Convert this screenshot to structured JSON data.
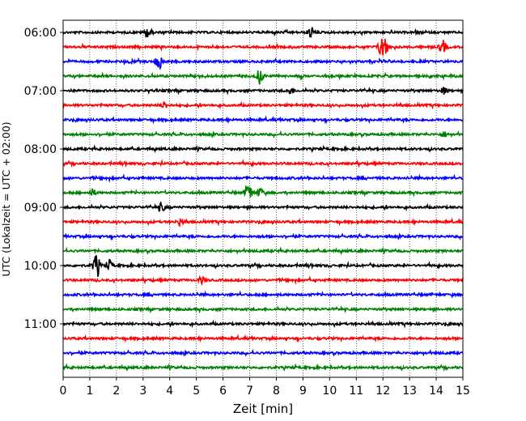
{
  "chart_data": {
    "type": "line",
    "title": "",
    "xlabel": "Zeit  [min]",
    "ylabel": "UTC (Lokalzeit = UTC + 02:00)",
    "xlim": [
      0,
      15
    ],
    "x_ticks": [
      "0",
      "1",
      "2",
      "3",
      "4",
      "5",
      "6",
      "7",
      "8",
      "9",
      "10",
      "11",
      "12",
      "13",
      "14",
      "15"
    ],
    "y_tick_labels": [
      "06:00",
      "07:00",
      "08:00",
      "09:00",
      "10:00",
      "11:00"
    ],
    "grid": "vertical-dotted",
    "row_interval_min": 15,
    "color_cycle": [
      "#000000",
      "#ff0000",
      "#0000ff",
      "#008000"
    ],
    "rows": [
      {
        "start": "06:00",
        "events": [
          {
            "t": 3.2,
            "amp": 6
          },
          {
            "t": 9.3,
            "amp": 6
          }
        ]
      },
      {
        "start": "06:15",
        "events": [
          {
            "t": 11.95,
            "amp": 12
          },
          {
            "t": 12.1,
            "amp": 8
          },
          {
            "t": 14.25,
            "amp": 8
          }
        ]
      },
      {
        "start": "06:30",
        "events": [
          {
            "t": 3.6,
            "amp": 9
          }
        ]
      },
      {
        "start": "06:45",
        "events": [
          {
            "t": 7.4,
            "amp": 8
          }
        ]
      },
      {
        "start": "07:00",
        "events": [
          {
            "t": 8.55,
            "amp": 4
          },
          {
            "t": 14.3,
            "amp": 4
          }
        ]
      },
      {
        "start": "07:15",
        "events": [
          {
            "t": 3.8,
            "amp": 4
          }
        ]
      },
      {
        "start": "07:30",
        "events": []
      },
      {
        "start": "07:45",
        "events": [
          {
            "t": 14.3,
            "amp": 3
          }
        ]
      },
      {
        "start": "08:00",
        "events": []
      },
      {
        "start": "08:15",
        "events": []
      },
      {
        "start": "08:30",
        "events": []
      },
      {
        "start": "08:45",
        "events": [
          {
            "t": 1.1,
            "amp": 4
          },
          {
            "t": 6.95,
            "amp": 11
          },
          {
            "t": 7.4,
            "amp": 5
          }
        ]
      },
      {
        "start": "09:00",
        "events": [
          {
            "t": 3.7,
            "amp": 5
          }
        ]
      },
      {
        "start": "09:15",
        "events": [
          {
            "t": 4.4,
            "amp": 4
          }
        ]
      },
      {
        "start": "09:30",
        "events": []
      },
      {
        "start": "09:45",
        "events": []
      },
      {
        "start": "10:00",
        "events": [
          {
            "t": 1.25,
            "amp": 14
          },
          {
            "t": 1.75,
            "amp": 6
          }
        ]
      },
      {
        "start": "10:15",
        "events": [
          {
            "t": 5.2,
            "amp": 4
          }
        ]
      },
      {
        "start": "10:30",
        "events": []
      },
      {
        "start": "10:45",
        "events": []
      },
      {
        "start": "11:00",
        "events": []
      },
      {
        "start": "11:15",
        "events": []
      },
      {
        "start": "11:30",
        "events": []
      },
      {
        "start": "11:45",
        "events": []
      }
    ]
  }
}
